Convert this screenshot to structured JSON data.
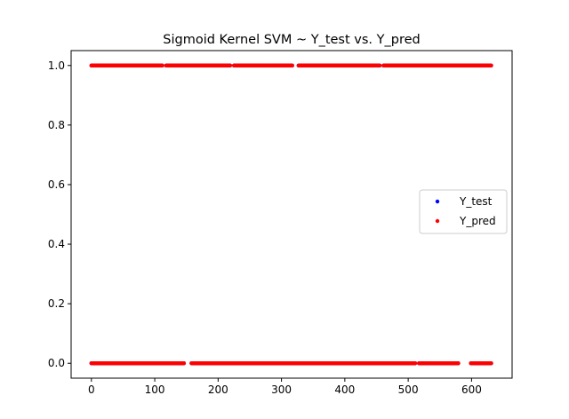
{
  "chart_data": {
    "type": "scatter",
    "title": "Sigmoid Kernel SVM ~ Y_test vs. Y_pred",
    "xlabel": "",
    "ylabel": "",
    "xlim": [
      -32,
      664
    ],
    "ylim": [
      -0.05,
      1.05
    ],
    "x_ticks": [
      0,
      100,
      200,
      300,
      400,
      500,
      600
    ],
    "x_tick_labels": [
      "0",
      "100",
      "200",
      "300",
      "400",
      "500",
      "600"
    ],
    "y_ticks": [
      0.0,
      0.2,
      0.4,
      0.6,
      0.8,
      1.0
    ],
    "y_tick_labels": [
      "0.0",
      "0.2",
      "0.4",
      "0.6",
      "0.8",
      "1.0"
    ],
    "grid": false,
    "legend_position": "center-right",
    "x_count": 632,
    "series": [
      {
        "name": "Y_test",
        "color": "#0000ff",
        "marker": "dot",
        "segments": [
          {
            "y": 1,
            "x_start": 0,
            "x_end": 631,
            "gaps": [
              [
                113,
                117
              ],
              [
                220,
                224
              ],
              [
                318,
                326
              ],
              [
                456,
                460
              ]
            ]
          },
          {
            "y": 0,
            "x_start": 0,
            "x_end": 631,
            "gaps": [
              [
                147,
                157
              ],
              [
                512,
                516
              ],
              [
                580,
                598
              ]
            ]
          }
        ]
      },
      {
        "name": "Y_pred",
        "color": "#ff0000",
        "marker": "dot",
        "segments": [
          {
            "y": 1,
            "x_start": 0,
            "x_end": 631,
            "gaps": [
              [
                113,
                117
              ],
              [
                220,
                224
              ],
              [
                318,
                326
              ],
              [
                456,
                460
              ]
            ]
          },
          {
            "y": 0,
            "x_start": 0,
            "x_end": 631,
            "gaps": [
              [
                147,
                157
              ],
              [
                512,
                516
              ],
              [
                580,
                598
              ]
            ]
          }
        ]
      }
    ]
  }
}
